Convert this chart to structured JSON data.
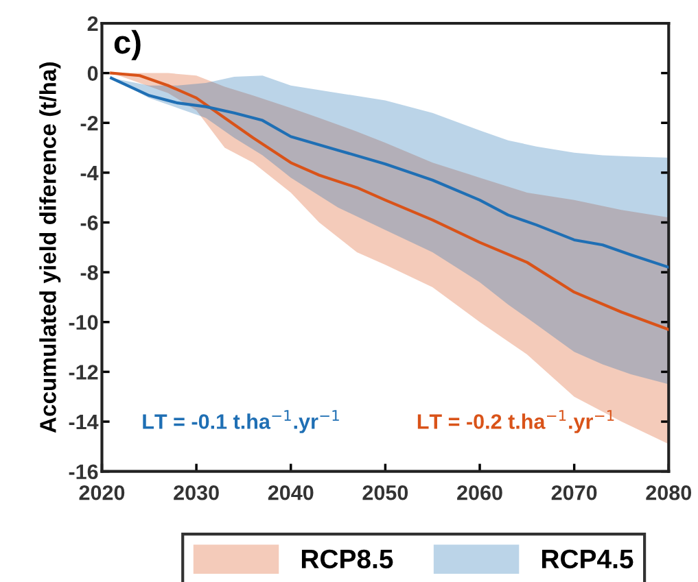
{
  "chart_data": {
    "type": "line",
    "ylabel": "Accumulated yield diference (t/ha)",
    "xlim": [
      2020,
      2080
    ],
    "xticks": [
      2020,
      2030,
      2040,
      2050,
      2060,
      2070,
      2080
    ],
    "ylim": [
      -16,
      2
    ],
    "yticks": [
      -16,
      -14,
      -12,
      -10,
      -8,
      -6,
      -4,
      -2,
      0,
      2
    ],
    "legend": "bottom",
    "line_style": "solid",
    "annotations": [
      "c)",
      "LT = -0.1 t.ha$^{−1}$.yr$^{−1}$",
      "LT = -0.2 t.ha$^{−1}$.yr$^{−1}$"
    ],
    "series": [
      {
        "name": "RCP8.5",
        "color": "#d95319",
        "x": [
          2021,
          2024,
          2027,
          2030,
          2033,
          2036,
          2040,
          2043,
          2047,
          2050,
          2055,
          2060,
          2065,
          2070,
          2075,
          2080
        ],
        "values": [
          0,
          -0.1,
          -0.5,
          -1.0,
          -1.8,
          -2.6,
          -3.6,
          -4.1,
          -4.6,
          -5.1,
          -5.9,
          -6.8,
          -7.6,
          -8.8,
          -9.6,
          -10.3
        ],
        "lower": [
          0,
          -0.4,
          -0.8,
          -1.5,
          -3.0,
          -3.6,
          -4.8,
          -6.0,
          -7.2,
          -7.7,
          -8.6,
          -10.0,
          -11.3,
          -13.0,
          -14.0,
          -14.9
        ],
        "upper": [
          0,
          0,
          0,
          -0.1,
          -0.55,
          -0.9,
          -1.4,
          -1.8,
          -2.35,
          -2.8,
          -3.6,
          -4.2,
          -4.8,
          -5.1,
          -5.5,
          -5.8
        ]
      },
      {
        "name": "RCP4.5",
        "color": "#1f6fb4",
        "x": [
          2021,
          2025,
          2028,
          2031,
          2034,
          2037,
          2040,
          2045,
          2050,
          2055,
          2060,
          2063,
          2066,
          2070,
          2073,
          2076,
          2080
        ],
        "values": [
          -0.2,
          -0.9,
          -1.2,
          -1.35,
          -1.6,
          -1.9,
          -2.55,
          -3.1,
          -3.65,
          -4.3,
          -5.1,
          -5.7,
          -6.1,
          -6.7,
          -6.9,
          -7.3,
          -7.8
        ],
        "lower": [
          -0.2,
          -1.0,
          -1.4,
          -1.8,
          -2.6,
          -3.3,
          -4.2,
          -5.4,
          -6.3,
          -7.2,
          -8.4,
          -9.3,
          -10.1,
          -11.2,
          -11.7,
          -12.1,
          -12.5
        ],
        "upper": [
          -0.2,
          -0.5,
          -0.5,
          -0.4,
          -0.15,
          -0.1,
          -0.5,
          -0.8,
          -1.1,
          -1.6,
          -2.3,
          -2.7,
          -2.95,
          -3.2,
          -3.3,
          -3.35,
          -3.4
        ]
      }
    ]
  }
}
